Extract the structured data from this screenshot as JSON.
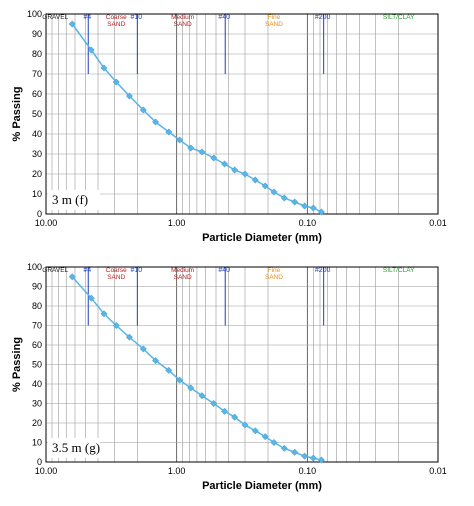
{
  "chart_data": [
    {
      "type": "line",
      "xscale": "log-reversed",
      "xlim": [
        10.0,
        0.01
      ],
      "ylim": [
        0,
        100
      ],
      "xlabel": "Particle Diameter (mm)",
      "ylabel": "% Passing",
      "x_ticks": [
        "10.00",
        "1.00",
        "0.10",
        "0.01"
      ],
      "y_ticks": [
        "0",
        "10",
        "20",
        "30",
        "40",
        "50",
        "60",
        "70",
        "80",
        "90",
        "100"
      ],
      "grid": true,
      "annotation": "3 m (f)",
      "classes": [
        "GRAVEL",
        "Coarse\nSAND",
        "Medium\nSAND",
        "Fine\nSAND",
        "SILT/CLAY"
      ],
      "sieves": [
        "#4",
        "#10",
        "#40",
        "#200"
      ],
      "x": [
        6.3,
        4.5,
        3.6,
        2.9,
        2.3,
        1.8,
        1.45,
        1.15,
        0.95,
        0.78,
        0.64,
        0.52,
        0.43,
        0.36,
        0.3,
        0.25,
        0.21,
        0.18,
        0.15,
        0.125,
        0.105,
        0.09,
        0.078
      ],
      "values": [
        95,
        82,
        73,
        66,
        59,
        52,
        46,
        41,
        37,
        33,
        31,
        28,
        25,
        22,
        20,
        17,
        14,
        11,
        8,
        6,
        4,
        3,
        1
      ],
      "color": "#5ab4e6"
    },
    {
      "type": "line",
      "xscale": "log-reversed",
      "xlim": [
        10.0,
        0.01
      ],
      "ylim": [
        0,
        100
      ],
      "xlabel": "Particle Diameter (mm)",
      "ylabel": "% Passing",
      "x_ticks": [
        "10.00",
        "1.00",
        "0.10",
        "0.01"
      ],
      "y_ticks": [
        "0",
        "10",
        "20",
        "30",
        "40",
        "50",
        "60",
        "70",
        "80",
        "90",
        "100"
      ],
      "grid": true,
      "annotation": "3.5 m (g)",
      "classes": [
        "GRAVEL",
        "Coarse\nSAND",
        "Medium\nSAND",
        "Fine\nSAND",
        "SILT/CLAY"
      ],
      "sieves": [
        "#4",
        "#10",
        "#40",
        "#200"
      ],
      "x": [
        6.3,
        4.5,
        3.6,
        2.9,
        2.3,
        1.8,
        1.45,
        1.15,
        0.95,
        0.78,
        0.64,
        0.52,
        0.43,
        0.36,
        0.3,
        0.25,
        0.21,
        0.18,
        0.15,
        0.125,
        0.105,
        0.09,
        0.078
      ],
      "values": [
        95,
        84,
        76,
        70,
        64,
        58,
        52,
        47,
        42,
        38,
        34,
        30,
        26,
        23,
        19,
        16,
        13,
        10,
        7,
        5,
        3,
        2,
        1
      ],
      "color": "#5ab4e6"
    }
  ]
}
